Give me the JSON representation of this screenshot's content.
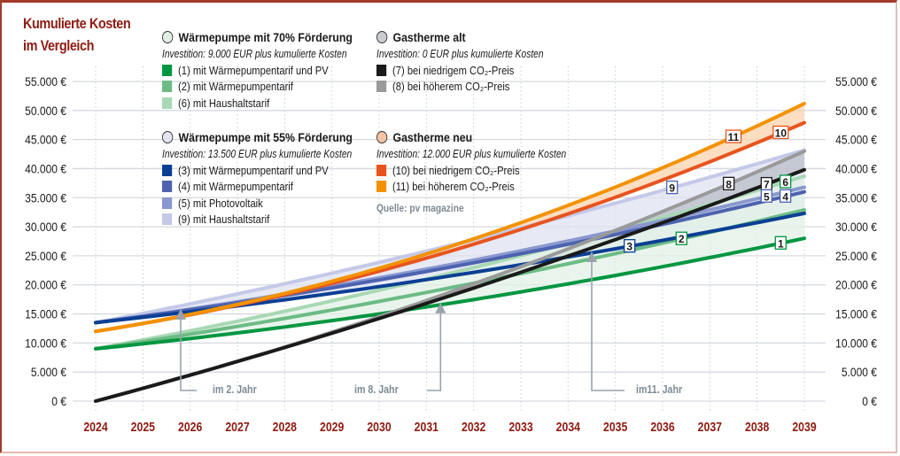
{
  "title_line1": "Kumulierte Kosten",
  "title_line2": "im Vergleich",
  "source": "Quelle: pv magazine",
  "legend": [
    {
      "heading": "Wärmepumpe mit 70% Förderung",
      "circle_color": "#e3efe6",
      "subtitle": "Investition: 9.000 EUR plus kumulierte Kosten",
      "items": [
        {
          "label": "(1) mit Wärmepumpentarif und PV",
          "color": "#009640"
        },
        {
          "label": "(2) mit Wärmepumpentarif",
          "color": "#6cbb85"
        },
        {
          "label": "(6) mit Haushaltstarif",
          "color": "#a8d8b4"
        }
      ]
    },
    {
      "heading": "Wärmepumpe mit 55% Förderung",
      "circle_color": "#e4e5f3",
      "subtitle": "Investition: 13.500 EUR plus kumulierte Kosten",
      "items": [
        {
          "label": "(3) mit Wärmepumpentarif und PV",
          "color": "#0b3f94"
        },
        {
          "label": "(4) mit Wärmepumpentarif",
          "color": "#4d63b0"
        },
        {
          "label": "(5) mit Photovoltaik",
          "color": "#8a98cf"
        },
        {
          "label": "(9) mit Haushaltstarif",
          "color": "#c5c9e8"
        }
      ]
    },
    {
      "heading": "Gastherme alt",
      "circle_color": "#c9ccd0",
      "subtitle": "Investition: 0 EUR plus kumulierte Kosten",
      "items": [
        {
          "label": "(7) bei niedrigem CO₂-Preis",
          "color": "#1a1a1a"
        },
        {
          "label": "(8) bei höherem CO₂-Preis",
          "color": "#9a9a9a"
        }
      ]
    },
    {
      "heading": "Gastherme neu",
      "circle_color": "#f7c4a3",
      "subtitle": "Investition: 12.000 EUR plus kumulierte Kosten",
      "items": [
        {
          "label": "(10) bei niedrigem CO₂-Preis",
          "color": "#e8541e"
        },
        {
          "label": "(11) bei höherem CO₂-Preis",
          "color": "#f39200"
        }
      ]
    }
  ],
  "chart_data": {
    "type": "line",
    "title": "Kumulierte Kosten im Vergleich",
    "xlabel": "",
    "ylabel": "",
    "x": [
      2024,
      2025,
      2026,
      2027,
      2028,
      2029,
      2030,
      2031,
      2032,
      2033,
      2034,
      2035,
      2036,
      2037,
      2038,
      2039
    ],
    "xlim": [
      2024,
      2039
    ],
    "ylim": [
      0,
      55000
    ],
    "y_ticks": [
      0,
      5000,
      10000,
      15000,
      20000,
      25000,
      30000,
      35000,
      40000,
      45000,
      50000,
      55000
    ],
    "y_tick_labels": [
      "0 €",
      "5.000 €",
      "10.000 €",
      "15.000 €",
      "20.000 €",
      "25.000 €",
      "30.000 €",
      "35.000 €",
      "40.000 €",
      "45.000 €",
      "50.000 €",
      "55.000 €"
    ],
    "x_tick_labels": [
      "2024",
      "2025",
      "2026",
      "2027",
      "2028",
      "2029",
      "2030",
      "2031",
      "2032",
      "2033",
      "2034",
      "2035",
      "2036",
      "2037",
      "2038",
      "2039"
    ],
    "grid": true,
    "legend_position": "top",
    "series": [
      {
        "id": "11",
        "name": "(11) bei höherem CO₂-Preis",
        "color": "#f39200",
        "anchors": {
          "2024": 12000,
          "2031": 25300,
          "2039": 51200
        },
        "label_year": 2037.5
      },
      {
        "id": "10",
        "name": "(10) bei niedrigem CO₂-Preis",
        "color": "#e8541e",
        "anchors": {
          "2024": 12000,
          "2031": 24600,
          "2039": 47900
        },
        "label_year": 2038.5
      },
      {
        "id": "9",
        "name": "(9) mit Haushaltstarif",
        "color": "#c5c9e8",
        "anchors": {
          "2024": 13500,
          "2031": 25800,
          "2039": 43200
        },
        "label_year": 2036.2
      },
      {
        "id": "8",
        "name": "(8) bei höherem CO₂-Preis",
        "color": "#9a9a9a",
        "anchors": {
          "2024": 0,
          "2031": 17300,
          "2039": 43000
        },
        "label_year": 2037.4
      },
      {
        "id": "7",
        "name": "(7) bei niedrigem CO₂-Preis",
        "color": "#1a1a1a",
        "anchors": {
          "2024": 0,
          "2031": 16800,
          "2039": 39800
        },
        "label_year": 2038.2
      },
      {
        "id": "6",
        "name": "(6) mit Haushaltstarif",
        "color": "#a8d8b4",
        "anchors": {
          "2024": 9000,
          "2031": 21000,
          "2039": 38700
        },
        "label_year": 2038.6
      },
      {
        "id": "5",
        "name": "(5) mit Photovoltaik",
        "color": "#8a98cf",
        "anchors": {
          "2024": 13500,
          "2031": 22700,
          "2039": 36800
        },
        "label_year": 2038.2
      },
      {
        "id": "4",
        "name": "(4) mit Wärmepumpentarif",
        "color": "#4d63b0",
        "anchors": {
          "2024": 13500,
          "2031": 22300,
          "2039": 36000
        },
        "label_year": 2038.6
      },
      {
        "id": "3",
        "name": "(3) mit Wärmepumpentarif und PV",
        "color": "#0b3f94",
        "anchors": {
          "2024": 13500,
          "2031": 20900,
          "2039": 32300
        },
        "label_year": 2035.3
      },
      {
        "id": "2",
        "name": "(2) mit Wärmepumpentarif",
        "color": "#6cbb85",
        "anchors": {
          "2024": 9000,
          "2031": 18700,
          "2039": 32900
        },
        "label_year": 2036.4
      },
      {
        "id": "1",
        "name": "(1) mit Wärmepumpentarif und PV",
        "color": "#009640",
        "anchors": {
          "2024": 9000,
          "2031": 16200,
          "2039": 28000
        },
        "label_year": 2038.5
      }
    ],
    "bands": [
      {
        "between": [
          "11",
          "10"
        ],
        "color": "#fbd3ad"
      },
      {
        "between": [
          "9",
          "3"
        ],
        "color": "#dfe2f2"
      },
      {
        "between": [
          "8",
          "7"
        ],
        "color": "#b9bec7"
      },
      {
        "between": [
          "6",
          "1"
        ],
        "color": "#e2f1e6"
      }
    ],
    "annotations": [
      {
        "text": "im 2. Jahr",
        "arrow_x_year": 2025.8,
        "arrow_y_value": 16000
      },
      {
        "text": "im 8. Jahr",
        "arrow_x_year": 2031.3,
        "arrow_y_value": 17100
      },
      {
        "text": "im11. Jahr",
        "arrow_x_year": 2034.5,
        "arrow_y_value": 25900
      }
    ]
  }
}
